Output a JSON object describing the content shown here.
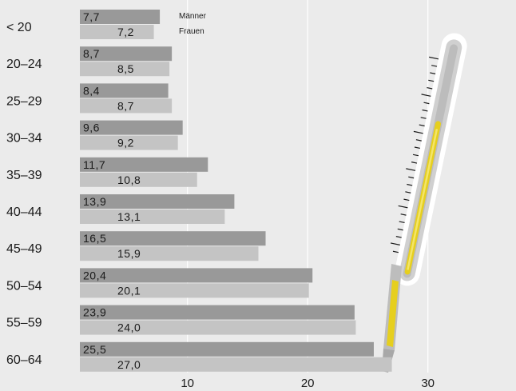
{
  "chart_data": {
    "type": "bar",
    "orientation": "horizontal",
    "categories": [
      "< 20",
      "20–24",
      "25–29",
      "30–34",
      "35–39",
      "40–44",
      "45–49",
      "50–54",
      "55–59",
      "60–64"
    ],
    "series": [
      {
        "name": "Männer",
        "values": [
          7.7,
          8.7,
          8.4,
          9.6,
          11.7,
          13.9,
          16.5,
          20.4,
          23.9,
          25.5
        ],
        "labels": [
          "7,7",
          "8,7",
          "8,4",
          "9,6",
          "11,7",
          "13,9",
          "16,5",
          "20,4",
          "23,9",
          "25,5"
        ],
        "color": "#999999"
      },
      {
        "name": "Frauen",
        "values": [
          7.2,
          8.5,
          8.7,
          9.2,
          10.8,
          13.1,
          15.9,
          20.1,
          24.0,
          27.0
        ],
        "labels": [
          "7,2",
          "8,5",
          "8,7",
          "9,2",
          "10,8",
          "13,1",
          "15,9",
          "20,1",
          "24,0",
          "27,0"
        ],
        "color": "#c4c4c4"
      }
    ],
    "xticks": [
      10,
      20,
      30
    ],
    "xlim": [
      1,
      34
    ],
    "grid": true,
    "legend": "top-left",
    "title": "",
    "xlabel": "",
    "ylabel": ""
  },
  "decoration": {
    "name": "thermometer",
    "accent": "#e6cf1e"
  }
}
